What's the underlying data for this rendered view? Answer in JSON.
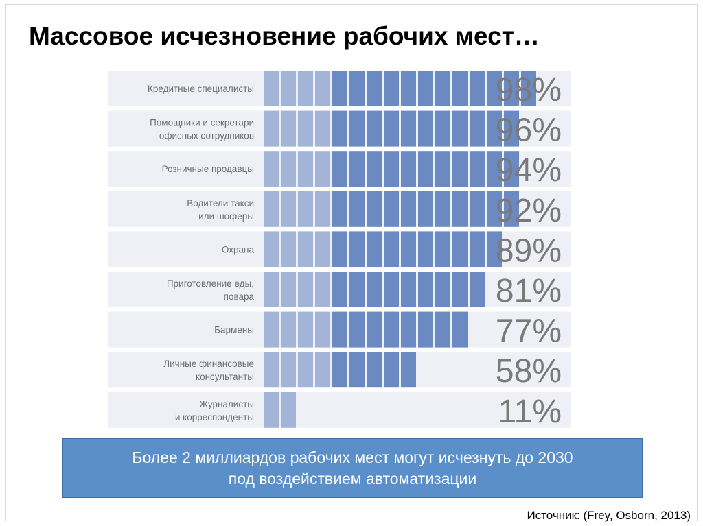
{
  "slide": {
    "title": "Массовое исчезновение рабочих мест…",
    "banner_line1": "Более 2 миллиардов рабочих мест могут исчезнуть до 2030",
    "banner_line2": "под воздействием автоматизации",
    "source": "Источник: (Frey, Osborn, 2013)"
  },
  "chart_data": {
    "type": "bar",
    "title": "",
    "xlabel": "",
    "ylabel": "",
    "ylim": [
      0,
      100
    ],
    "categories": [
      [
        "Кредитные специалисты"
      ],
      [
        "Помощники и секретари",
        "офисных сотрудников"
      ],
      [
        "Розничные продавцы"
      ],
      [
        "Водители такси",
        "или шоферы"
      ],
      [
        "Охрана"
      ],
      [
        "Приготовление еды,",
        "повара"
      ],
      [
        "Бармены"
      ],
      [
        "Личные финансовые",
        "консультанты"
      ],
      [
        "Журналисты",
        "и корреспонденты"
      ]
    ],
    "values": [
      98,
      96,
      94,
      92,
      89,
      81,
      77,
      58,
      11
    ],
    "value_labels": [
      "98%",
      "96%",
      "94%",
      "92%",
      "89%",
      "81%",
      "77%",
      "58%",
      "11%"
    ],
    "colors": {
      "row_background": "#eef0f6",
      "segment_light": "#a2b5d9",
      "segment_dark": "#6b89c3",
      "label_text": "#707070",
      "percent_text": "#7a7a7a",
      "banner": "#5b8fca"
    }
  }
}
